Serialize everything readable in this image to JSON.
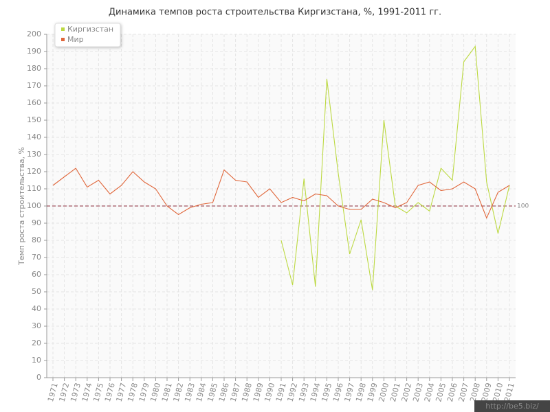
{
  "chart_data": {
    "type": "line",
    "title": "Динамика темпов роста строительства Киргизстана, %, 1991-2011 гг.",
    "y_label": "Темп роста строительства, %",
    "categories": [
      "1971",
      "1972",
      "1973",
      "1974",
      "1975",
      "1976",
      "1977",
      "1978",
      "1979",
      "1980",
      "1981",
      "1982",
      "1983",
      "1984",
      "1985",
      "1986",
      "1987",
      "1988",
      "1989",
      "1990",
      "1991",
      "1992",
      "1993",
      "1994",
      "1995",
      "1996",
      "1997",
      "1998",
      "1999",
      "2000",
      "2001",
      "2002",
      "2003",
      "2004",
      "2005",
      "2006",
      "2007",
      "2008",
      "2009",
      "2010",
      "2011"
    ],
    "series": [
      {
        "name": "Киргизстан",
        "color": "#bcd942",
        "values": [
          null,
          null,
          null,
          null,
          null,
          null,
          null,
          null,
          null,
          null,
          null,
          null,
          null,
          null,
          null,
          null,
          null,
          null,
          null,
          null,
          80,
          54,
          116,
          53,
          174,
          119,
          72,
          92,
          51,
          150,
          100,
          96,
          102,
          97,
          122,
          115,
          184,
          193,
          114,
          84,
          112
        ]
      },
      {
        "name": "Мир",
        "color": "#e0663a",
        "values": [
          112,
          117,
          122,
          111,
          115,
          107,
          112,
          120,
          114,
          110,
          100,
          95,
          99,
          101,
          102,
          121,
          115,
          114,
          105,
          110,
          102,
          105,
          103,
          107,
          106,
          100,
          98,
          98,
          104,
          102,
          99,
          102,
          112,
          114,
          109,
          110,
          114,
          110,
          93,
          108,
          112
        ]
      }
    ],
    "reference_line": {
      "value": 100,
      "color": "#8b2a3a"
    },
    "ylim": [
      0,
      200
    ],
    "yticks": [
      0,
      10,
      20,
      30,
      40,
      50,
      60,
      70,
      80,
      90,
      100,
      110,
      120,
      130,
      140,
      150,
      160,
      170,
      180,
      190,
      200
    ],
    "grid": true,
    "legend": "top-left",
    "watermark": "http://be5.biz/"
  }
}
